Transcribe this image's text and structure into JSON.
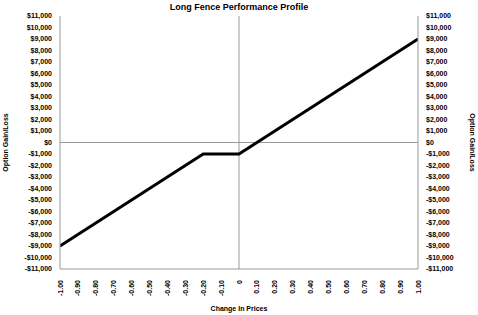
{
  "chart_data": {
    "type": "line",
    "title": "Long Fence Performance Profile",
    "x_label": "Change In Prices",
    "y_label": "Option Gain/Loss",
    "x": [
      -1.0,
      -0.2,
      0.0,
      1.0
    ],
    "series": [
      {
        "name": "Long Fence",
        "color": "#000000",
        "values": [
          -9000,
          -1000,
          -1000,
          9000
        ]
      }
    ],
    "xlim": [
      -1.0,
      1.0
    ],
    "xticks": [
      {
        "value": -1.0,
        "label": "-1.00"
      },
      {
        "value": -0.9,
        "label": "-0.90"
      },
      {
        "value": -0.8,
        "label": "-0.80"
      },
      {
        "value": -0.7,
        "label": "-0.70"
      },
      {
        "value": -0.6,
        "label": "-0.60"
      },
      {
        "value": -0.5,
        "label": "-0.50"
      },
      {
        "value": -0.4,
        "label": "-0.40"
      },
      {
        "value": -0.3,
        "label": "-0.30"
      },
      {
        "value": -0.2,
        "label": "-0.20"
      },
      {
        "value": -0.1,
        "label": "-0.10"
      },
      0,
      {
        "value": 0.1,
        "label": "0.10"
      },
      {
        "value": 0.2,
        "label": "0.20"
      },
      {
        "value": 0.3,
        "label": "0.30"
      },
      {
        "value": 0.4,
        "label": "0.40"
      },
      {
        "value": 0.5,
        "label": "0.50"
      },
      {
        "value": 0.6,
        "label": "0.60"
      },
      {
        "value": 0.7,
        "label": "0.70"
      },
      {
        "value": 0.8,
        "label": "0.80"
      },
      {
        "value": 0.9,
        "label": "0.90"
      },
      {
        "value": 1.0,
        "label": "1.00"
      }
    ],
    "ylim": [
      -11000,
      11000
    ],
    "yticks": [
      {
        "value": -11000,
        "label": "-$11,000"
      },
      {
        "value": -10000,
        "label": "-$10,000"
      },
      {
        "value": -9000,
        "label": "-$9,000"
      },
      {
        "value": -8000,
        "label": "-$8,000"
      },
      {
        "value": -7000,
        "label": "-$7,000"
      },
      {
        "value": -6000,
        "label": "-$6,000"
      },
      {
        "value": -5000,
        "label": "-$5,000"
      },
      {
        "value": -4000,
        "label": "-$4,000"
      },
      {
        "value": -3000,
        "label": "-$3,000"
      },
      {
        "value": -2000,
        "label": "-$2,000"
      },
      {
        "value": -1000,
        "label": "-$1,000"
      },
      {
        "value": 0,
        "label": "$0"
      },
      {
        "value": 1000,
        "label": "$1,000"
      },
      {
        "value": 2000,
        "label": "$2,000"
      },
      {
        "value": 3000,
        "label": "$3,000"
      },
      {
        "value": 4000,
        "label": "$4,000"
      },
      {
        "value": 5000,
        "label": "$5,000"
      },
      {
        "value": 6000,
        "label": "$6,000"
      },
      {
        "value": 7000,
        "label": "$7,000"
      },
      {
        "value": 8000,
        "label": "$8,000"
      },
      {
        "value": 9000,
        "label": "$9,000"
      },
      {
        "value": 10000,
        "label": "$10,000"
      },
      {
        "value": 11000,
        "label": "$11,000"
      }
    ],
    "grid": false
  }
}
